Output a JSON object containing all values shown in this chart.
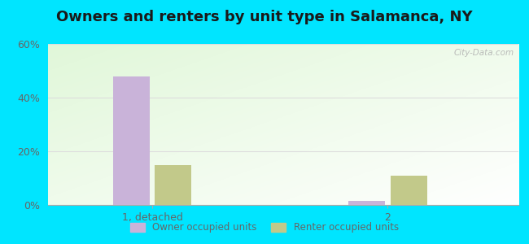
{
  "title": "Owners and renters by unit type in Salamanca, NY",
  "categories": [
    "1, detached",
    "2"
  ],
  "owner_values": [
    48,
    1.5
  ],
  "renter_values": [
    15,
    11
  ],
  "owner_color": "#c9b3d9",
  "renter_color": "#c2c98a",
  "ylim": [
    0,
    60
  ],
  "yticks": [
    0,
    20,
    40,
    60
  ],
  "ytick_labels": [
    "0%",
    "20%",
    "40%",
    "60%"
  ],
  "bar_width": 0.28,
  "outer_color": "#00e5ff",
  "legend_labels": [
    "Owner occupied units",
    "Renter occupied units"
  ],
  "watermark": "City-Data.com",
  "title_fontsize": 13,
  "tick_color": "#666666",
  "grid_color": "#dddddd",
  "x_positions": [
    0.7,
    2.5
  ]
}
